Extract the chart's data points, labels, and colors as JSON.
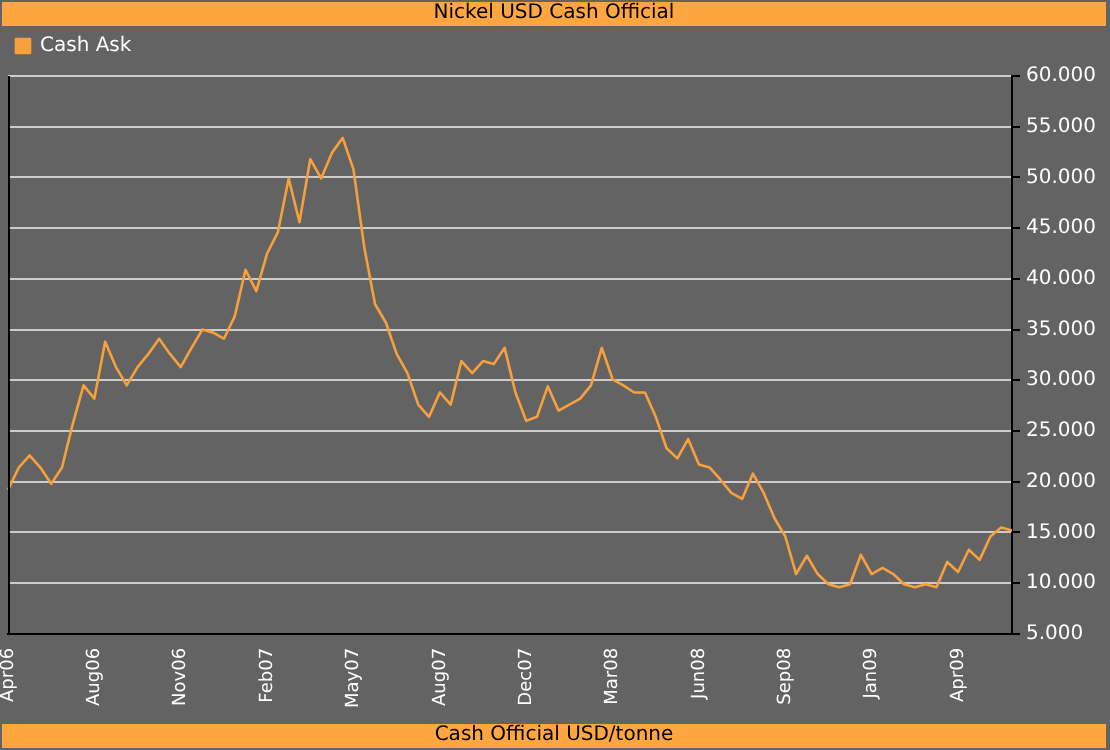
{
  "chart_data": {
    "type": "line",
    "title": "Nickel USD Cash Official",
    "xlabel": "Cash Official USD/tonne",
    "categories": [
      "Apr06",
      null,
      null,
      null,
      null,
      null,
      null,
      null,
      "Aug06",
      null,
      null,
      null,
      null,
      null,
      null,
      null,
      "Nov06",
      null,
      null,
      null,
      null,
      null,
      null,
      null,
      "Feb07",
      null,
      null,
      null,
      null,
      null,
      null,
      null,
      "May07",
      null,
      null,
      null,
      null,
      null,
      null,
      null,
      "Aug07",
      null,
      null,
      null,
      null,
      null,
      null,
      null,
      "Dec07",
      null,
      null,
      null,
      null,
      null,
      null,
      null,
      "Mar08",
      null,
      null,
      null,
      null,
      null,
      null,
      null,
      "Jun08",
      null,
      null,
      null,
      null,
      null,
      null,
      null,
      "Sep08",
      null,
      null,
      null,
      null,
      null,
      null,
      null,
      "Jan09",
      null,
      null,
      null,
      null,
      null,
      null,
      null,
      "Apr09",
      null,
      null,
      null,
      null,
      null
    ],
    "series": [
      {
        "name": "Cash Ask",
        "color": "#f7a03c",
        "values": [
          19200,
          21400,
          22600,
          21400,
          19800,
          21400,
          25700,
          29500,
          28200,
          33800,
          31300,
          29500,
          31300,
          32600,
          34100,
          32600,
          31300,
          33200,
          35000,
          34700,
          34100,
          36300,
          40900,
          38800,
          42500,
          44600,
          49900,
          45600,
          51800,
          49900,
          52400,
          53900,
          50800,
          43100,
          37500,
          35700,
          32600,
          30700,
          27600,
          26400,
          28800,
          27600,
          31900,
          30700,
          31900,
          31600,
          33200,
          28800,
          26000,
          26400,
          29400,
          27000,
          27600,
          28200,
          29500,
          33200,
          30100,
          29500,
          28800,
          28800,
          26400,
          23300,
          22300,
          24200,
          21700,
          21400,
          20200,
          18900,
          18300,
          20800,
          18900,
          16400,
          14600,
          10900,
          12700,
          10900,
          9900,
          9600,
          9900,
          12800,
          10900,
          11500,
          10900,
          9900,
          9600,
          9900,
          9600,
          12100,
          11100,
          13300,
          12300,
          14600,
          15500,
          15200
        ]
      }
    ],
    "ylim": [
      5000,
      60000
    ],
    "yticks": [
      {
        "value": 5000,
        "label": "5.000"
      },
      {
        "value": 10000,
        "label": "10.000"
      },
      {
        "value": 15000,
        "label": "15.000"
      },
      {
        "value": 20000,
        "label": "20.000"
      },
      {
        "value": 25000,
        "label": "25.000"
      },
      {
        "value": 30000,
        "label": "30.000"
      },
      {
        "value": 35000,
        "label": "35.000"
      },
      {
        "value": 40000,
        "label": "40.000"
      },
      {
        "value": 45000,
        "label": "45.000"
      },
      {
        "value": 50000,
        "label": "50.000"
      },
      {
        "value": 55000,
        "label": "55.000"
      },
      {
        "value": 60000,
        "label": "60.000"
      }
    ],
    "grid": "y",
    "legend": "top left",
    "marker": "none",
    "line_style": "solid"
  }
}
